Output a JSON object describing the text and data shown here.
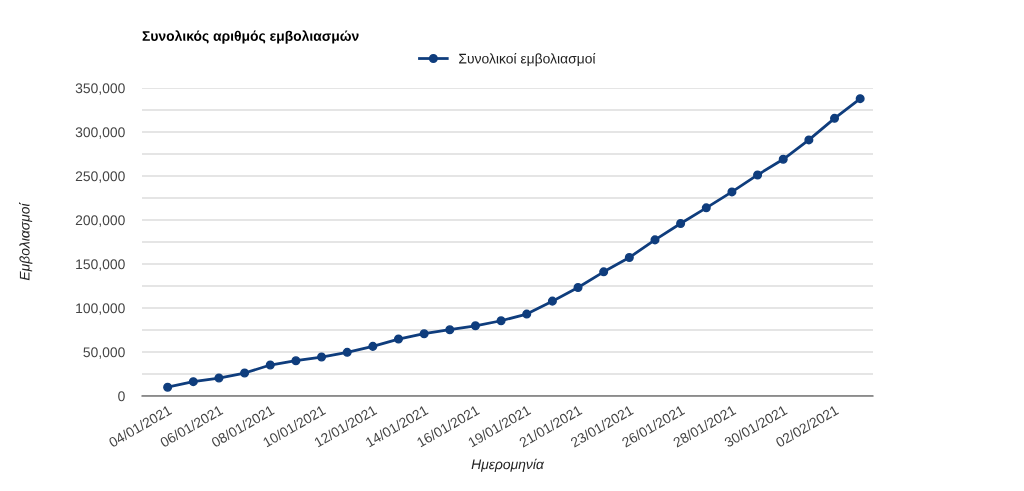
{
  "chart_data": {
    "type": "line",
    "title": "Συνολικός αριθμός εμβολιασμών",
    "xlabel": "Ημερομηνία",
    "ylabel": "Εμβολιασμοί",
    "categories": [
      "04/01/2021",
      null,
      "06/01/2021",
      null,
      "08/01/2021",
      null,
      "10/01/2021",
      null,
      "12/01/2021",
      null,
      "14/01/2021",
      null,
      "16/01/2021",
      null,
      "19/01/2021",
      null,
      "21/01/2021",
      null,
      "23/01/2021",
      null,
      "26/01/2021",
      null,
      "28/01/2021",
      null,
      "30/01/2021",
      null,
      "02/02/2021",
      null
    ],
    "series": [
      {
        "name": "Συνολικοί εμβολιασμοί",
        "color": "#0f3d7d",
        "values": [
          10000,
          16300,
          20400,
          26100,
          35200,
          40100,
          44300,
          49600,
          56400,
          64700,
          70800,
          75300,
          79800,
          85500,
          93100,
          107800,
          123300,
          141100,
          157400,
          177400,
          196000,
          213800,
          231900,
          251200,
          269000,
          291000,
          315500,
          337900
        ]
      }
    ],
    "ylim": [
      0,
      350000
    ],
    "yticks": [
      {
        "value": 0,
        "label": "0"
      },
      {
        "value": 25000,
        "label": null
      },
      {
        "value": 50000,
        "label": "50,000"
      },
      {
        "value": 75000,
        "label": null
      },
      {
        "value": 100000,
        "label": "100,000"
      },
      {
        "value": 125000,
        "label": null
      },
      {
        "value": 150000,
        "label": "150,000"
      },
      {
        "value": 175000,
        "label": null
      },
      {
        "value": 200000,
        "label": "200,000"
      },
      {
        "value": 225000,
        "label": null
      },
      {
        "value": 250000,
        "label": "250,000"
      },
      {
        "value": 275000,
        "label": null
      },
      {
        "value": 300000,
        "label": "300,000"
      },
      {
        "value": 325000,
        "label": null
      },
      {
        "value": 350000,
        "label": "350,000"
      }
    ],
    "grid": "y",
    "legend": "top",
    "marker": "circle",
    "line_style": "solid"
  }
}
